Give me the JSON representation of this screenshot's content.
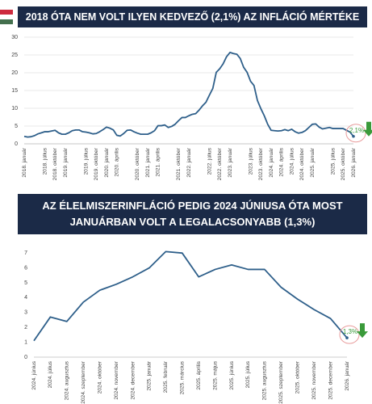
{
  "chart_data": [
    {
      "type": "line",
      "title": "2018 ÓTA NEM VOLT ILYEN KEDVEZŐ (2,1%) AZ INFLÁCIÓ MÉRTÉKE",
      "categories": [
        "2018. január",
        null,
        null,
        null,
        null,
        null,
        "2018. július",
        null,
        null,
        "2018. október",
        null,
        null,
        "2019. január",
        null,
        null,
        null,
        null,
        null,
        "2019. július",
        null,
        null,
        "2019. október",
        null,
        null,
        "2020. január",
        null,
        null,
        "2020. április",
        null,
        null,
        null,
        null,
        null,
        "2020. október",
        null,
        null,
        "2021. január",
        null,
        null,
        "2021. április",
        null,
        null,
        null,
        null,
        null,
        "2021. október",
        null,
        null,
        "2022. január",
        null,
        null,
        null,
        null,
        null,
        "2022. július",
        null,
        null,
        "2022. október",
        null,
        null,
        "2023. január",
        null,
        null,
        null,
        null,
        null,
        "2023. július",
        null,
        null,
        "2023. október",
        null,
        null,
        "2024. január",
        null,
        null,
        "2024. április",
        null,
        null,
        "2024. július",
        null,
        null,
        "2024. október",
        null,
        null,
        "2025. január",
        null,
        null,
        null,
        null,
        null,
        "2025. július",
        null,
        null,
        "2025. október",
        null,
        null,
        "2026. január"
      ],
      "values": [
        2.1,
        1.9,
        2.0,
        2.3,
        2.8,
        3.1,
        3.4,
        3.4,
        3.6,
        3.8,
        3.1,
        2.7,
        2.7,
        3.1,
        3.7,
        3.9,
        3.9,
        3.4,
        3.3,
        3.1,
        2.8,
        2.9,
        3.4,
        4.0,
        4.7,
        4.4,
        3.9,
        2.4,
        2.2,
        2.9,
        3.8,
        3.9,
        3.4,
        3.0,
        2.7,
        2.7,
        2.7,
        3.1,
        3.7,
        5.1,
        5.1,
        5.3,
        4.6,
        4.9,
        5.5,
        6.5,
        7.4,
        7.4,
        7.9,
        8.3,
        8.5,
        9.5,
        10.7,
        11.7,
        13.7,
        15.6,
        20.1,
        21.1,
        22.5,
        24.5,
        25.7,
        25.4,
        25.2,
        24.0,
        21.5,
        20.1,
        17.6,
        16.4,
        12.2,
        9.9,
        7.9,
        5.5,
        3.8,
        3.7,
        3.6,
        3.7,
        4.0,
        3.7,
        4.1,
        3.4,
        3.0,
        3.2,
        3.7,
        4.6,
        5.5,
        5.6,
        4.7,
        4.2,
        4.4,
        4.6,
        4.3,
        4.3,
        4.3,
        4.3,
        3.8,
        3.3,
        2.1
      ],
      "annotation": "2,1%",
      "color": "#2e5f8a",
      "annotation_color": "#3a9a3a",
      "ylim": [
        0,
        30
      ],
      "yticks": [
        0,
        5,
        10,
        15,
        20,
        25,
        30
      ],
      "grid": true
    },
    {
      "type": "line",
      "title": "AZ ÉLELMISZERINFLÁCIÓ PEDIG 2024 JÚNIUSA ÓTA MOST JANUÁRBAN VOLT A LEGALACSONYABB (1,3%)",
      "categories": [
        "2024. június",
        "2024. július",
        "2024. augusztus",
        "2024. szeptember",
        "2024. október",
        "2024. november",
        "2024. december",
        "2025. január",
        "2025. február",
        "2025. március",
        "2025. április",
        "2025. május",
        "2025. június",
        "2025. július",
        "2025. augusztus",
        "2025. szeptember",
        "2025. október",
        "2025. november",
        "2025. december",
        "2026. január"
      ],
      "values": [
        1.1,
        2.7,
        2.4,
        3.7,
        4.5,
        4.9,
        5.4,
        6.0,
        7.1,
        7.0,
        5.4,
        5.9,
        6.2,
        5.9,
        5.9,
        4.7,
        3.9,
        3.2,
        2.6,
        1.3
      ],
      "annotation": "1,3%",
      "color": "#2e5f8a",
      "annotation_color": "#3a9a3a",
      "ylim": [
        0,
        7.5
      ],
      "yticks": [
        0,
        1,
        2,
        3,
        4,
        5,
        6,
        7
      ],
      "grid": false
    }
  ]
}
